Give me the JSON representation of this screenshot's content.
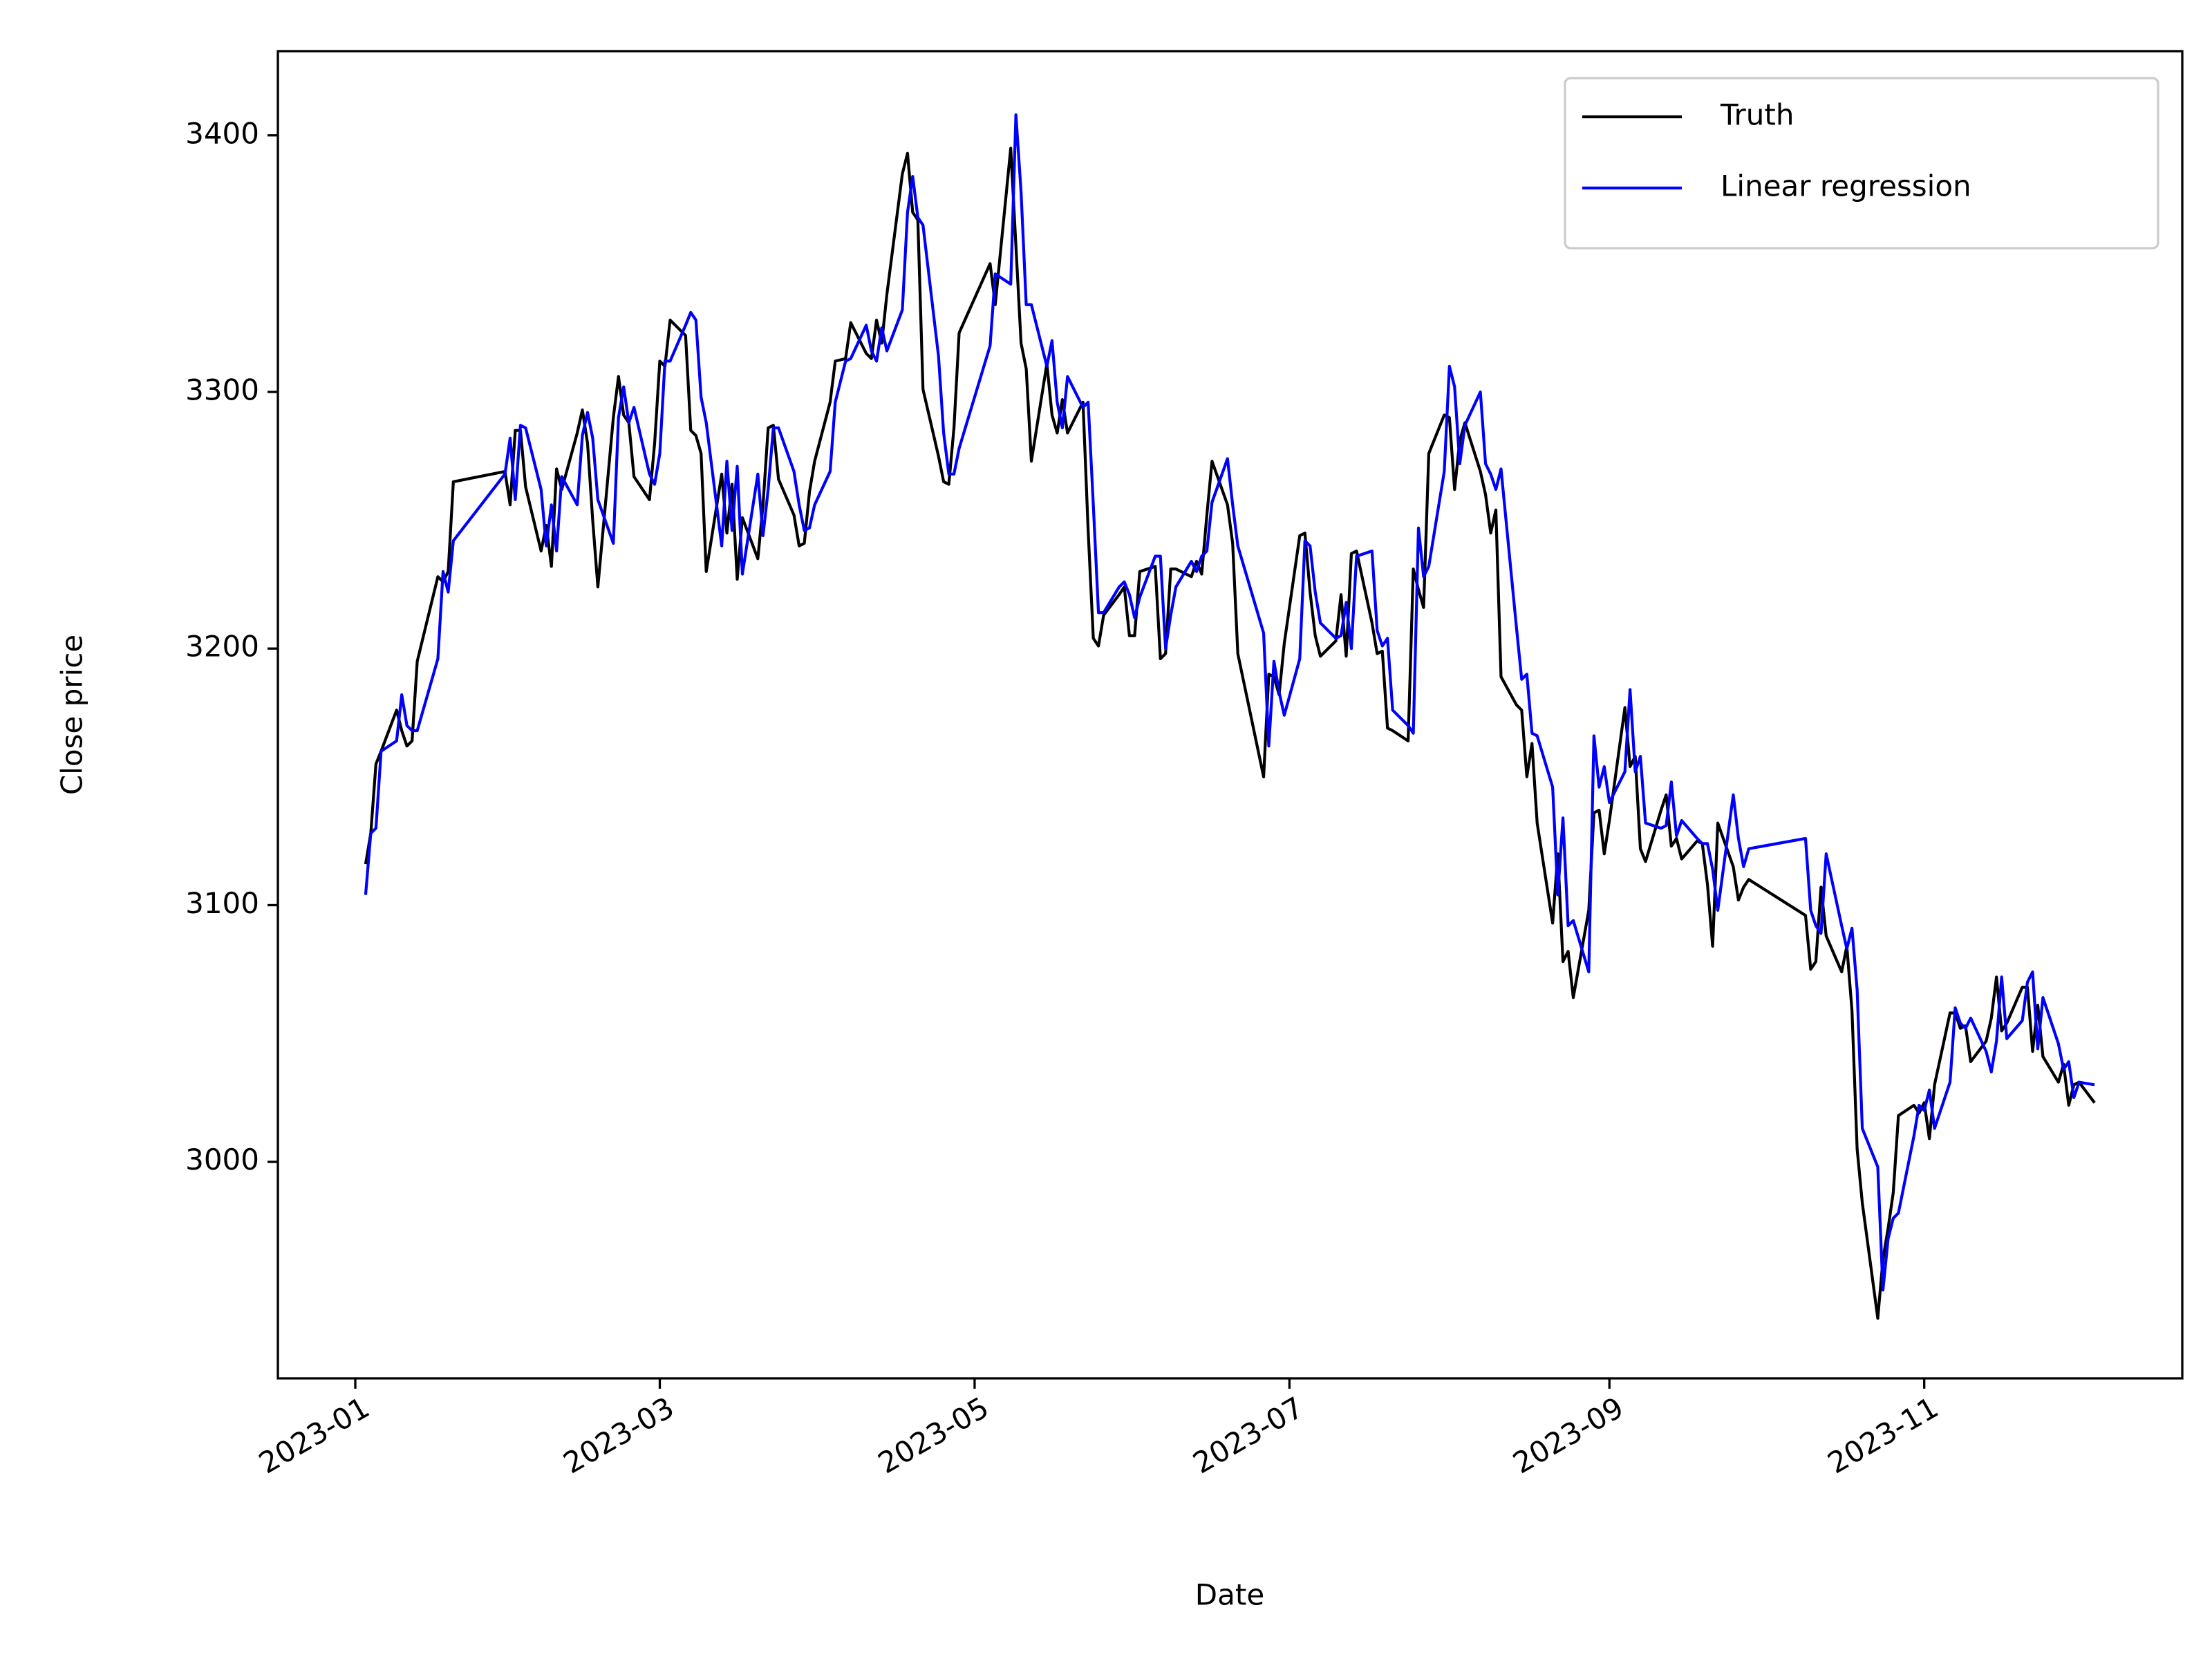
{
  "chart_data": {
    "type": "line",
    "xlabel": "Date",
    "ylabel": "Close price",
    "x": [
      "2023-01-03",
      "2023-01-04",
      "2023-01-05",
      "2023-01-06",
      "2023-01-09",
      "2023-01-10",
      "2023-01-11",
      "2023-01-12",
      "2023-01-13",
      "2023-01-17",
      "2023-01-18",
      "2023-01-19",
      "2023-01-20",
      "2023-01-30",
      "2023-01-31",
      "2023-02-01",
      "2023-02-02",
      "2023-02-03",
      "2023-02-06",
      "2023-02-07",
      "2023-02-08",
      "2023-02-09",
      "2023-02-10",
      "2023-02-13",
      "2023-02-14",
      "2023-02-15",
      "2023-02-16",
      "2023-02-17",
      "2023-02-20",
      "2023-02-21",
      "2023-02-22",
      "2023-02-23",
      "2023-02-24",
      "2023-02-27",
      "2023-02-28",
      "2023-03-01",
      "2023-03-02",
      "2023-03-03",
      "2023-03-06",
      "2023-03-07",
      "2023-03-08",
      "2023-03-09",
      "2023-03-10",
      "2023-03-13",
      "2023-03-14",
      "2023-03-15",
      "2023-03-16",
      "2023-03-17",
      "2023-03-20",
      "2023-03-21",
      "2023-03-22",
      "2023-03-23",
      "2023-03-24",
      "2023-03-27",
      "2023-03-28",
      "2023-03-29",
      "2023-03-30",
      "2023-03-31",
      "2023-04-03",
      "2023-04-04",
      "2023-04-06",
      "2023-04-07",
      "2023-04-10",
      "2023-04-11",
      "2023-04-12",
      "2023-04-13",
      "2023-04-14",
      "2023-04-17",
      "2023-04-18",
      "2023-04-19",
      "2023-04-20",
      "2023-04-21",
      "2023-04-24",
      "2023-04-25",
      "2023-04-26",
      "2023-04-27",
      "2023-04-28",
      "2023-05-04",
      "2023-05-05",
      "2023-05-08",
      "2023-05-09",
      "2023-05-10",
      "2023-05-11",
      "2023-05-12",
      "2023-05-15",
      "2023-05-16",
      "2023-05-17",
      "2023-05-18",
      "2023-05-19",
      "2023-05-22",
      "2023-05-23",
      "2023-05-24",
      "2023-05-25",
      "2023-05-26",
      "2023-05-29",
      "2023-05-30",
      "2023-05-31",
      "2023-06-01",
      "2023-06-02",
      "2023-06-05",
      "2023-06-06",
      "2023-06-07",
      "2023-06-08",
      "2023-06-09",
      "2023-06-12",
      "2023-06-13",
      "2023-06-14",
      "2023-06-15",
      "2023-06-16",
      "2023-06-19",
      "2023-06-20",
      "2023-06-21",
      "2023-06-26",
      "2023-06-27",
      "2023-06-28",
      "2023-06-29",
      "2023-06-30",
      "2023-07-03",
      "2023-07-04",
      "2023-07-05",
      "2023-07-06",
      "2023-07-07",
      "2023-07-10",
      "2023-07-11",
      "2023-07-12",
      "2023-07-13",
      "2023-07-14",
      "2023-07-17",
      "2023-07-18",
      "2023-07-19",
      "2023-07-20",
      "2023-07-21",
      "2023-07-24",
      "2023-07-25",
      "2023-07-26",
      "2023-07-27",
      "2023-07-28",
      "2023-07-31",
      "2023-08-01",
      "2023-08-02",
      "2023-08-03",
      "2023-08-04",
      "2023-08-07",
      "2023-08-08",
      "2023-08-09",
      "2023-08-10",
      "2023-08-11",
      "2023-08-14",
      "2023-08-15",
      "2023-08-16",
      "2023-08-17",
      "2023-08-18",
      "2023-08-21",
      "2023-08-22",
      "2023-08-23",
      "2023-08-24",
      "2023-08-25",
      "2023-08-28",
      "2023-08-29",
      "2023-08-30",
      "2023-08-31",
      "2023-09-01",
      "2023-09-04",
      "2023-09-05",
      "2023-09-06",
      "2023-09-07",
      "2023-09-08",
      "2023-09-11",
      "2023-09-12",
      "2023-09-13",
      "2023-09-14",
      "2023-09-15",
      "2023-09-18",
      "2023-09-19",
      "2023-09-20",
      "2023-09-21",
      "2023-09-22",
      "2023-09-25",
      "2023-09-26",
      "2023-09-27",
      "2023-09-28",
      "2023-10-09",
      "2023-10-10",
      "2023-10-11",
      "2023-10-12",
      "2023-10-13",
      "2023-10-16",
      "2023-10-17",
      "2023-10-18",
      "2023-10-19",
      "2023-10-20",
      "2023-10-23",
      "2023-10-24",
      "2023-10-25",
      "2023-10-26",
      "2023-10-27",
      "2023-10-30",
      "2023-10-31",
      "2023-11-01",
      "2023-11-02",
      "2023-11-03",
      "2023-11-06",
      "2023-11-07",
      "2023-11-08",
      "2023-11-09",
      "2023-11-10",
      "2023-11-13",
      "2023-11-14",
      "2023-11-15",
      "2023-11-16",
      "2023-11-17",
      "2023-11-20",
      "2023-11-21",
      "2023-11-22",
      "2023-11-23",
      "2023-11-24",
      "2023-11-27",
      "2023-11-28",
      "2023-11-29",
      "2023-11-30",
      "2023-12-01",
      "2023-12-04"
    ],
    "series": [
      {
        "name": "Truth",
        "color": "#000000",
        "values": [
          3116,
          3128,
          3155,
          3160,
          3176,
          3168,
          3162,
          3164,
          3195,
          3228,
          3226,
          3230,
          3265,
          3269,
          3256,
          3285,
          3285,
          3263,
          3238,
          3248,
          3232,
          3270,
          3262,
          3284,
          3293,
          3280,
          3250,
          3224,
          3290,
          3306,
          3291,
          3288,
          3267,
          3258,
          3280,
          3312,
          3310,
          3328,
          3322,
          3285,
          3283,
          3276,
          3230,
          3268,
          3245,
          3264,
          3227,
          3251,
          3235,
          3256,
          3286,
          3287,
          3266,
          3252,
          3240,
          3241,
          3261,
          3273,
          3296,
          3312,
          3313,
          3327,
          3315,
          3313,
          3328,
          3319,
          3338,
          3385,
          3393,
          3370,
          3367,
          3301,
          3275,
          3265,
          3264,
          3286,
          3323,
          3350,
          3334,
          3395,
          3357,
          3319,
          3309,
          3273,
          3311,
          3291,
          3284,
          3297,
          3284,
          3296,
          3246,
          3204,
          3201,
          3213,
          3221,
          3224,
          3205,
          3205,
          3230,
          3232,
          3196,
          3198,
          3231,
          3231,
          3228,
          3234,
          3229,
          3252,
          3273,
          3256,
          3241,
          3198,
          3150,
          3190,
          3189,
          3182,
          3202,
          3244,
          3245,
          3222,
          3205,
          3197,
          3203,
          3221,
          3197,
          3237,
          3238,
          3210,
          3198,
          3199,
          3169,
          3168,
          3164,
          3231,
          3223,
          3216,
          3276,
          3291,
          3290,
          3262,
          3281,
          3288,
          3269,
          3260,
          3245,
          3254,
          3189,
          3178,
          3176,
          3150,
          3163,
          3132,
          3093,
          3120,
          3078,
          3082,
          3064,
          3098,
          3136,
          3137,
          3120,
          3133,
          3177,
          3154,
          3158,
          3122,
          3117,
          3137,
          3143,
          3123,
          3126,
          3118,
          3125,
          3124,
          3108,
          3084,
          3132,
          3115,
          3102,
          3107,
          3110,
          3096,
          3075,
          3078,
          3107,
          3088,
          3074,
          3084,
          3059,
          3005,
          2984,
          2939,
          2962,
          2974,
          2988,
          3018,
          3022,
          3019,
          3023,
          3009,
          3030,
          3058,
          3058,
          3052,
          3053,
          3039,
          3047,
          3056,
          3072,
          3051,
          3054,
          3068,
          3068,
          3043,
          3061,
          3041,
          3031,
          3038,
          3022,
          3030,
          3031,
          3023
        ]
      },
      {
        "name": "Linear regression",
        "color": "#0000ff",
        "values": [
          3104,
          3128,
          3130,
          3160,
          3164,
          3182,
          3170,
          3168,
          3168,
          3196,
          3230,
          3222,
          3242,
          3268,
          3282,
          3258,
          3287,
          3286,
          3262,
          3240,
          3256,
          3238,
          3267,
          3256,
          3283,
          3292,
          3282,
          3258,
          3241,
          3290,
          3302,
          3288,
          3294,
          3268,
          3264,
          3276,
          3312,
          3312,
          3326,
          3331,
          3328,
          3298,
          3288,
          3240,
          3273,
          3246,
          3271,
          3229,
          3268,
          3244,
          3262,
          3286,
          3286,
          3269,
          3256,
          3246,
          3247,
          3256,
          3269,
          3296,
          3312,
          3313,
          3326,
          3316,
          3312,
          3325,
          3316,
          3332,
          3370,
          3384,
          3368,
          3365,
          3314,
          3284,
          3268,
          3268,
          3278,
          3318,
          3346,
          3342,
          3408,
          3378,
          3334,
          3334,
          3310,
          3320,
          3296,
          3286,
          3306,
          3294,
          3296,
          3256,
          3214,
          3214,
          3224,
          3226,
          3221,
          3212,
          3220,
          3236,
          3236,
          3200,
          3213,
          3224,
          3234,
          3230,
          3236,
          3238,
          3257,
          3274,
          3256,
          3240,
          3206,
          3162,
          3195,
          3183,
          3174,
          3196,
          3242,
          3240,
          3222,
          3210,
          3204,
          3205,
          3218,
          3200,
          3236,
          3238,
          3207,
          3201,
          3204,
          3176,
          3170,
          3167,
          3247,
          3228,
          3232,
          3269,
          3310,
          3302,
          3272,
          3287,
          3300,
          3272,
          3268,
          3262,
          3270,
          3208,
          3188,
          3190,
          3167,
          3166,
          3146,
          3104,
          3134,
          3092,
          3094,
          3074,
          3166,
          3146,
          3154,
          3140,
          3152,
          3184,
          3152,
          3158,
          3132,
          3130,
          3131,
          3148,
          3127,
          3133,
          3126,
          3124,
          3124,
          3114,
          3098,
          3143,
          3126,
          3115,
          3122,
          3126,
          3098,
          3092,
          3089,
          3120,
          3092,
          3083,
          3091,
          3067,
          3013,
          2998,
          2950,
          2970,
          2978,
          2980,
          3010,
          3022,
          3020,
          3028,
          3013,
          3031,
          3060,
          3054,
          3052,
          3056,
          3043,
          3035,
          3047,
          3072,
          3048,
          3055,
          3070,
          3074,
          3044,
          3064,
          3046,
          3036,
          3039,
          3025,
          3031,
          3030
        ]
      }
    ],
    "xlim": [
      "2022-12-17",
      "2023-12-21"
    ],
    "xticks": [
      {
        "value": "2023-01-01",
        "label": "2023-01"
      },
      {
        "value": "2023-03-01",
        "label": "2023-03"
      },
      {
        "value": "2023-05-01",
        "label": "2023-05"
      },
      {
        "value": "2023-07-01",
        "label": "2023-07"
      },
      {
        "value": "2023-09-01",
        "label": "2023-09"
      },
      {
        "value": "2023-11-01",
        "label": "2023-11"
      }
    ],
    "ylim": [
      2915.6,
      3432.8
    ],
    "yticks": [
      3000,
      3100,
      3200,
      3300,
      3400
    ],
    "legend": "upper right"
  }
}
